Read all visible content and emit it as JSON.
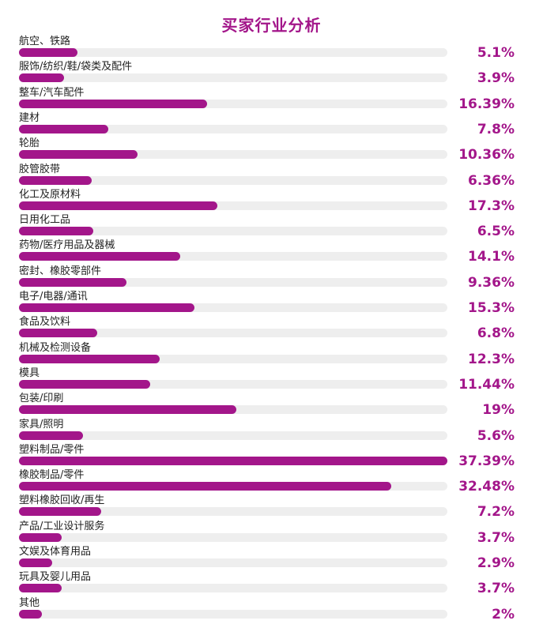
{
  "colors": {
    "accent": "#a3168a",
    "track": "#eeeeee",
    "text": "#222222"
  },
  "chart_data": {
    "type": "bar",
    "orientation": "horizontal",
    "title": "买家行业分析",
    "xlim": [
      0,
      37.39
    ],
    "categories": [
      "航空、铁路",
      "服饰/纺织/鞋/袋类及配件",
      "整车/汽车配件",
      "建材",
      "轮胎",
      "胶管胶带",
      "化工及原材料",
      "日用化工品",
      "药物/医疗用品及器械",
      "密封、橡胶零部件",
      "电子/电器/通讯",
      "食品及饮料",
      "机械及检测设备",
      "模具",
      "包装/印刷",
      "家具/照明",
      "塑料制品/零件",
      "橡胶制品/零件",
      "塑料橡胶回收/再生",
      "产品/工业设计服务",
      "文娱及体育用品",
      "玩具及婴儿用品",
      "其他"
    ],
    "values": [
      5.1,
      3.9,
      16.39,
      7.8,
      10.36,
      6.36,
      17.3,
      6.5,
      14.1,
      9.36,
      15.3,
      6.8,
      12.3,
      11.44,
      19,
      5.6,
      37.39,
      32.48,
      7.2,
      3.7,
      2.9,
      3.7,
      2
    ],
    "value_labels": [
      "5.1%",
      "3.9%",
      "16.39%",
      "7.8%",
      "10.36%",
      "6.36%",
      "17.3%",
      "6.5%",
      "14.1%",
      "9.36%",
      "15.3%",
      "6.8%",
      "12.3%",
      "11.44%",
      "19%",
      "5.6%",
      "37.39%",
      "32.48%",
      "7.2%",
      "3.7%",
      "2.9%",
      "3.7%",
      "2%"
    ]
  }
}
